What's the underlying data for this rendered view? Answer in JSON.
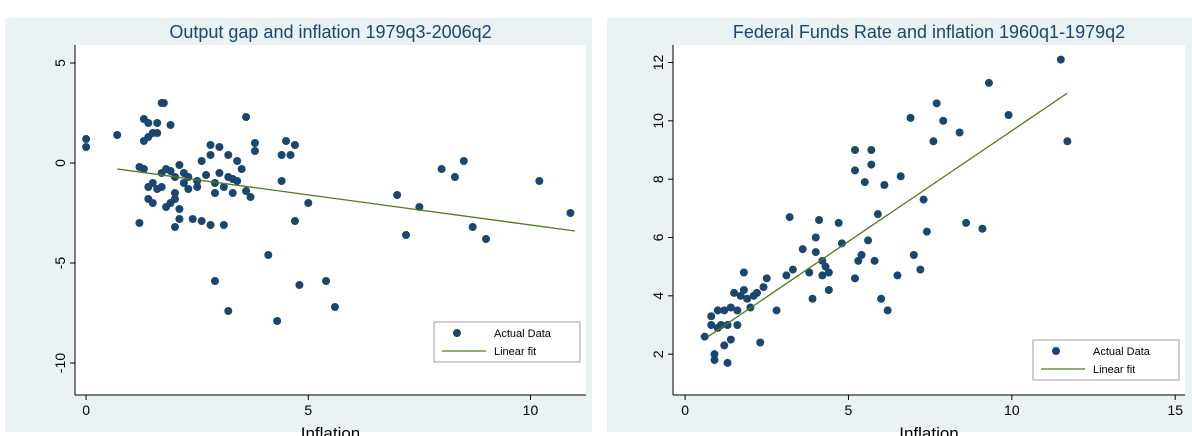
{
  "chart_data": [
    {
      "type": "scatter",
      "title": "Output gap and inflation 1979q3-2006q2",
      "x_label": "Inflation",
      "xlim": [
        -0.25,
        11.25
      ],
      "ylim": [
        -11.6,
        5.9
      ],
      "xticks": [
        0,
        5,
        10
      ],
      "yticks": [
        -10,
        -5,
        0,
        5
      ],
      "series": [
        {
          "name": "Actual Data",
          "color": "#1a476f",
          "x": [
            0.0,
            0.0,
            0.7,
            1.2,
            1.3,
            1.3,
            1.4,
            1.4,
            1.5,
            1.6,
            1.6,
            1.7,
            1.75,
            1.9,
            1.3,
            1.4,
            1.4,
            1.5,
            1.6,
            1.7,
            1.7,
            1.8,
            1.9,
            1.9,
            2.0,
            2.0,
            2.0,
            2.1,
            2.1,
            2.1,
            2.2,
            2.2,
            2.3,
            2.3,
            2.4,
            2.5,
            2.5,
            2.6,
            2.6,
            2.7,
            2.8,
            2.8,
            2.9,
            2.9,
            3.0,
            3.0,
            3.1,
            3.1,
            3.2,
            3.2,
            3.3,
            3.3,
            3.4,
            3.4,
            3.5,
            3.6,
            3.6,
            3.7,
            3.8,
            3.8,
            1.2,
            1.5,
            1.8,
            2.0,
            2.8,
            2.9,
            3.2,
            4.1,
            4.3,
            4.4,
            4.4,
            4.5,
            4.6,
            4.7,
            4.7,
            4.8,
            5.0,
            5.4,
            5.6,
            7.0,
            7.2,
            7.5,
            8.0,
            8.3,
            8.5,
            8.7,
            9.0,
            10.2,
            10.9
          ],
          "values": [
            1.2,
            0.8,
            1.4,
            -0.2,
            1.1,
            2.2,
            2.0,
            1.3,
            1.5,
            2.0,
            1.5,
            3.0,
            3.0,
            1.9,
            -0.3,
            -1.2,
            -1.8,
            -2.0,
            -1.3,
            -0.5,
            -1.2,
            -2.2,
            -2.0,
            -0.4,
            -0.7,
            -1.5,
            -1.8,
            -0.1,
            -2.3,
            -2.8,
            -0.5,
            -1.0,
            -1.3,
            -0.7,
            -2.8,
            -1.2,
            -0.9,
            -2.9,
            0.1,
            -0.6,
            0.4,
            0.9,
            -1.0,
            -1.5,
            0.8,
            -0.5,
            -3.1,
            -1.2,
            -0.7,
            0.4,
            -0.8,
            -1.5,
            -0.9,
            0.1,
            -0.3,
            2.3,
            -1.4,
            -1.7,
            0.6,
            1.0,
            -3.0,
            -1.0,
            -0.3,
            -3.2,
            -3.1,
            -5.9,
            -7.4,
            -4.6,
            -7.9,
            -0.9,
            0.4,
            1.1,
            0.4,
            0.9,
            -2.9,
            -6.1,
            -2.0,
            -5.9,
            -7.2,
            -1.6,
            -3.6,
            -2.2,
            -0.3,
            -0.7,
            0.1,
            -3.2,
            -3.8,
            -0.9,
            -2.5
          ]
        },
        {
          "name": "Linear fit",
          "color": "#4e7a1a",
          "x": [
            0.7,
            11.0
          ],
          "values": [
            -0.3,
            -3.4
          ]
        }
      ],
      "legend": "lower right"
    },
    {
      "type": "scatter",
      "title": "Federal Funds Rate and inflation 1960q1-1979q2",
      "x_label": "Inflation",
      "xlim": [
        -0.37,
        15.3
      ],
      "ylim": [
        0.6,
        12.6
      ],
      "xticks": [
        0,
        5,
        10,
        15
      ],
      "yticks": [
        2,
        4,
        6,
        8,
        10,
        12
      ],
      "series": [
        {
          "name": "Actual Data",
          "color": "#1a476f",
          "x": [
            0.6,
            0.8,
            0.8,
            0.9,
            0.9,
            1.0,
            1.0,
            1.1,
            1.2,
            1.2,
            1.3,
            1.3,
            1.4,
            1.4,
            1.5,
            1.6,
            1.6,
            1.7,
            1.8,
            1.8,
            1.9,
            2.0,
            2.1,
            2.2,
            2.3,
            2.4,
            2.5,
            2.8,
            3.1,
            3.2,
            3.3,
            3.6,
            3.8,
            3.9,
            4.0,
            4.0,
            4.1,
            4.2,
            4.2,
            4.3,
            4.4,
            4.4,
            4.7,
            4.8,
            5.2,
            5.2,
            5.2,
            5.3,
            5.4,
            5.5,
            5.6,
            5.7,
            5.7,
            5.8,
            5.9,
            6.0,
            6.1,
            6.2,
            6.5,
            6.6,
            6.9,
            7.0,
            7.2,
            7.3,
            7.4,
            7.6,
            7.7,
            7.9,
            8.4,
            8.6,
            9.1,
            9.3,
            9.9,
            11.5,
            11.7
          ],
          "values": [
            2.6,
            3.0,
            3.3,
            2.0,
            1.8,
            2.9,
            3.5,
            3.0,
            3.5,
            2.3,
            1.7,
            3.0,
            2.5,
            3.6,
            4.1,
            3.5,
            3.0,
            4.0,
            4.8,
            4.2,
            3.9,
            3.6,
            4.0,
            4.1,
            2.4,
            4.3,
            4.6,
            3.5,
            4.7,
            6.7,
            4.9,
            5.6,
            4.8,
            3.9,
            6.0,
            5.5,
            6.6,
            5.2,
            4.7,
            5.0,
            4.8,
            4.2,
            6.5,
            5.8,
            9.0,
            8.3,
            4.6,
            5.2,
            5.4,
            7.9,
            5.9,
            8.5,
            9.0,
            5.2,
            6.8,
            3.9,
            7.8,
            3.5,
            4.7,
            8.1,
            10.1,
            5.4,
            4.9,
            7.3,
            6.2,
            9.3,
            10.6,
            10.0,
            9.6,
            6.5,
            6.3,
            11.3,
            10.2,
            12.1,
            9.3
          ]
        },
        {
          "name": "Linear fit",
          "color": "#4e7a1a",
          "x": [
            0.7,
            11.7
          ],
          "values": [
            2.6,
            10.95
          ]
        }
      ],
      "legend": "lower right"
    }
  ]
}
